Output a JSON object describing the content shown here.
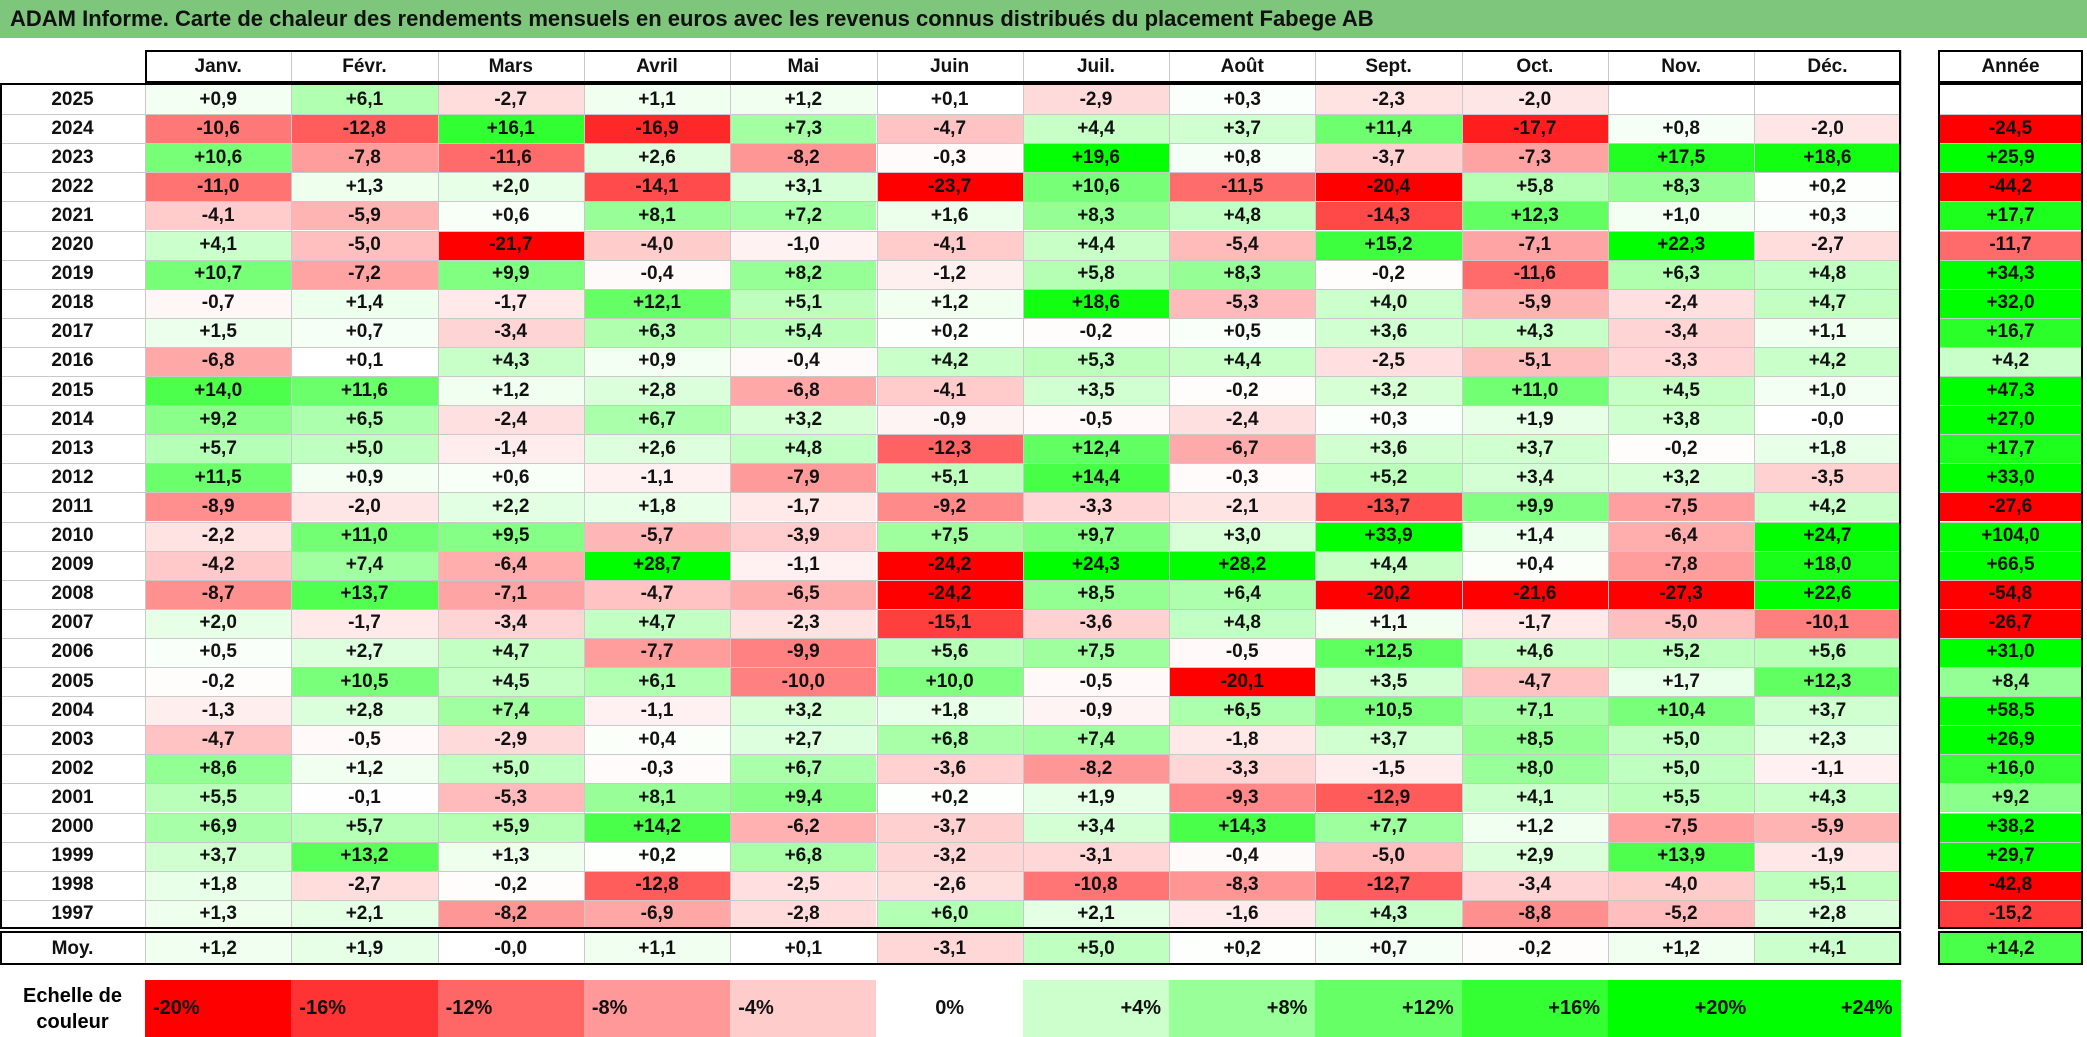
{
  "title": "ADAM Informe. Carte de chaleur des rendements mensuels en euros avec les revenus connus distribués du placement Fabege AB",
  "scale_label": "Echelle de couleur",
  "chart_data": {
    "type": "heatmap",
    "title": "ADAM Informe. Carte de chaleur des rendements mensuels en euros avec les revenus connus distribués du placement Fabege AB",
    "columns": [
      "Janv.",
      "Févr.",
      "Mars",
      "Avril",
      "Mai",
      "Juin",
      "Juil.",
      "Août",
      "Sept.",
      "Oct.",
      "Nov.",
      "Déc."
    ],
    "annual_header": "Année",
    "rows": [
      {
        "year": "2025",
        "values": [
          "+0,9",
          "+6,1",
          "-2,7",
          "+1,1",
          "+1,2",
          "+0,1",
          "-2,9",
          "+0,3",
          "-2,3",
          "-2,0",
          "",
          ""
        ],
        "annual": ""
      },
      {
        "year": "2024",
        "values": [
          "-10,6",
          "-12,8",
          "+16,1",
          "-16,9",
          "+7,3",
          "-4,7",
          "+4,4",
          "+3,7",
          "+11,4",
          "-17,7",
          "+0,8",
          "-2,0"
        ],
        "annual": "-24,5"
      },
      {
        "year": "2023",
        "values": [
          "+10,6",
          "-7,8",
          "-11,6",
          "+2,6",
          "-8,2",
          "-0,3",
          "+19,6",
          "+0,8",
          "-3,7",
          "-7,3",
          "+17,5",
          "+18,6"
        ],
        "annual": "+25,9"
      },
      {
        "year": "2022",
        "values": [
          "-11,0",
          "+1,3",
          "+2,0",
          "-14,1",
          "+3,1",
          "-23,7",
          "+10,6",
          "-11,5",
          "-20,4",
          "+5,8",
          "+8,3",
          "+0,2"
        ],
        "annual": "-44,2"
      },
      {
        "year": "2021",
        "values": [
          "-4,1",
          "-5,9",
          "+0,6",
          "+8,1",
          "+7,2",
          "+1,6",
          "+8,3",
          "+4,8",
          "-14,3",
          "+12,3",
          "+1,0",
          "+0,3"
        ],
        "annual": "+17,7"
      },
      {
        "year": "2020",
        "values": [
          "+4,1",
          "-5,0",
          "-21,7",
          "-4,0",
          "-1,0",
          "-4,1",
          "+4,4",
          "-5,4",
          "+15,2",
          "-7,1",
          "+22,3",
          "-2,7"
        ],
        "annual": "-11,7"
      },
      {
        "year": "2019",
        "values": [
          "+10,7",
          "-7,2",
          "+9,9",
          "-0,4",
          "+8,2",
          "-1,2",
          "+5,8",
          "+8,3",
          "-0,2",
          "-11,6",
          "+6,3",
          "+4,8"
        ],
        "annual": "+34,3"
      },
      {
        "year": "2018",
        "values": [
          "-0,7",
          "+1,4",
          "-1,7",
          "+12,1",
          "+5,1",
          "+1,2",
          "+18,6",
          "-5,3",
          "+4,0",
          "-5,9",
          "-2,4",
          "+4,7"
        ],
        "annual": "+32,0"
      },
      {
        "year": "2017",
        "values": [
          "+1,5",
          "+0,7",
          "-3,4",
          "+6,3",
          "+5,4",
          "+0,2",
          "-0,2",
          "+0,5",
          "+3,6",
          "+4,3",
          "-3,4",
          "+1,1"
        ],
        "annual": "+16,7"
      },
      {
        "year": "2016",
        "values": [
          "-6,8",
          "+0,1",
          "+4,3",
          "+0,9",
          "-0,4",
          "+4,2",
          "+5,3",
          "+4,4",
          "-2,5",
          "-5,1",
          "-3,3",
          "+4,2"
        ],
        "annual": "+4,2"
      },
      {
        "year": "2015",
        "values": [
          "+14,0",
          "+11,6",
          "+1,2",
          "+2,8",
          "-6,8",
          "-4,1",
          "+3,5",
          "-0,2",
          "+3,2",
          "+11,0",
          "+4,5",
          "+1,0"
        ],
        "annual": "+47,3"
      },
      {
        "year": "2014",
        "values": [
          "+9,2",
          "+6,5",
          "-2,4",
          "+6,7",
          "+3,2",
          "-0,9",
          "-0,5",
          "-2,4",
          "+0,3",
          "+1,9",
          "+3,8",
          "-0,0"
        ],
        "annual": "+27,0"
      },
      {
        "year": "2013",
        "values": [
          "+5,7",
          "+5,0",
          "-1,4",
          "+2,6",
          "+4,8",
          "-12,3",
          "+12,4",
          "-6,7",
          "+3,6",
          "+3,7",
          "-0,2",
          "+1,8"
        ],
        "annual": "+17,7"
      },
      {
        "year": "2012",
        "values": [
          "+11,5",
          "+0,9",
          "+0,6",
          "-1,1",
          "-7,9",
          "+5,1",
          "+14,4",
          "-0,3",
          "+5,2",
          "+3,4",
          "+3,2",
          "-3,5"
        ],
        "annual": "+33,0"
      },
      {
        "year": "2011",
        "values": [
          "-8,9",
          "-2,0",
          "+2,2",
          "+1,8",
          "-1,7",
          "-9,2",
          "-3,3",
          "-2,1",
          "-13,7",
          "+9,9",
          "-7,5",
          "+4,2"
        ],
        "annual": "-27,6"
      },
      {
        "year": "2010",
        "values": [
          "-2,2",
          "+11,0",
          "+9,5",
          "-5,7",
          "-3,9",
          "+7,5",
          "+9,7",
          "+3,0",
          "+33,9",
          "+1,4",
          "-6,4",
          "+24,7"
        ],
        "annual": "+104,0"
      },
      {
        "year": "2009",
        "values": [
          "-4,2",
          "+7,4",
          "-6,4",
          "+28,7",
          "-1,1",
          "-24,2",
          "+24,3",
          "+28,2",
          "+4,4",
          "+0,4",
          "-7,8",
          "+18,0"
        ],
        "annual": "+66,5"
      },
      {
        "year": "2008",
        "values": [
          "-8,7",
          "+13,7",
          "-7,1",
          "-4,7",
          "-6,5",
          "-24,2",
          "+8,5",
          "+6,4",
          "-20,2",
          "-21,6",
          "-27,3",
          "+22,6"
        ],
        "annual": "-54,8"
      },
      {
        "year": "2007",
        "values": [
          "+2,0",
          "-1,7",
          "-3,4",
          "+4,7",
          "-2,3",
          "-15,1",
          "-3,6",
          "+4,8",
          "+1,1",
          "-1,7",
          "-5,0",
          "-10,1"
        ],
        "annual": "-26,7"
      },
      {
        "year": "2006",
        "values": [
          "+0,5",
          "+2,7",
          "+4,7",
          "-7,7",
          "-9,9",
          "+5,6",
          "+7,5",
          "-0,5",
          "+12,5",
          "+4,6",
          "+5,2",
          "+5,6"
        ],
        "annual": "+31,0"
      },
      {
        "year": "2005",
        "values": [
          "-0,2",
          "+10,5",
          "+4,5",
          "+6,1",
          "-10,0",
          "+10,0",
          "-0,5",
          "-20,1",
          "+3,5",
          "-4,7",
          "+1,7",
          "+12,3"
        ],
        "annual": "+8,4"
      },
      {
        "year": "2004",
        "values": [
          "-1,3",
          "+2,8",
          "+7,4",
          "-1,1",
          "+3,2",
          "+1,8",
          "-0,9",
          "+6,5",
          "+10,5",
          "+7,1",
          "+10,4",
          "+3,7"
        ],
        "annual": "+58,5"
      },
      {
        "year": "2003",
        "values": [
          "-4,7",
          "-0,5",
          "-2,9",
          "+0,4",
          "+2,7",
          "+6,8",
          "+7,4",
          "-1,8",
          "+3,7",
          "+8,5",
          "+5,0",
          "+2,3"
        ],
        "annual": "+26,9"
      },
      {
        "year": "2002",
        "values": [
          "+8,6",
          "+1,2",
          "+5,0",
          "-0,3",
          "+6,7",
          "-3,6",
          "-8,2",
          "-3,3",
          "-1,5",
          "+8,0",
          "+5,0",
          "-1,1"
        ],
        "annual": "+16,0"
      },
      {
        "year": "2001",
        "values": [
          "+5,5",
          "-0,1",
          "-5,3",
          "+8,1",
          "+9,4",
          "+0,2",
          "+1,9",
          "-9,3",
          "-12,9",
          "+4,1",
          "+5,5",
          "+4,3"
        ],
        "annual": "+9,2"
      },
      {
        "year": "2000",
        "values": [
          "+6,9",
          "+5,7",
          "+5,9",
          "+14,2",
          "-6,2",
          "-3,7",
          "+3,4",
          "+14,3",
          "+7,7",
          "+1,2",
          "-7,5",
          "-5,9"
        ],
        "annual": "+38,2"
      },
      {
        "year": "1999",
        "values": [
          "+3,7",
          "+13,2",
          "+1,3",
          "+0,2",
          "+6,8",
          "-3,2",
          "-3,1",
          "-0,4",
          "-5,0",
          "+2,9",
          "+13,9",
          "-1,9"
        ],
        "annual": "+29,7"
      },
      {
        "year": "1998",
        "values": [
          "+1,8",
          "-2,7",
          "-0,2",
          "-12,8",
          "-2,5",
          "-2,6",
          "-10,8",
          "-8,3",
          "-12,7",
          "-3,4",
          "-4,0",
          "+5,1"
        ],
        "annual": "-42,8"
      },
      {
        "year": "1997",
        "values": [
          "+1,3",
          "+2,1",
          "-8,2",
          "-6,9",
          "-2,8",
          "+6,0",
          "+2,1",
          "-1,6",
          "+4,3",
          "-8,8",
          "-5,2",
          "+2,8"
        ],
        "annual": "-15,2"
      }
    ],
    "average": {
      "label": "Moy.",
      "values": [
        "+1,2",
        "+1,9",
        "-0,0",
        "+1,1",
        "+0,1",
        "-3,1",
        "+5,0",
        "+0,2",
        "+0,7",
        "-0,2",
        "+1,2",
        "+4,1"
      ],
      "annual": "+14,2"
    },
    "color_scale": [
      {
        "label": "-20%",
        "value": -20,
        "color": "#ff0000"
      },
      {
        "label": "-16%",
        "value": -16,
        "color": "#ff3333"
      },
      {
        "label": "-12%",
        "value": -12,
        "color": "#ff6666"
      },
      {
        "label": "-8%",
        "value": -8,
        "color": "#ff9999"
      },
      {
        "label": "-4%",
        "value": -4,
        "color": "#ffcccc"
      },
      {
        "label": "0%",
        "value": 0,
        "color": "#ffffff"
      },
      {
        "label": "+4%",
        "value": 4,
        "color": "#ccffcc"
      },
      {
        "label": "+8%",
        "value": 8,
        "color": "#99ff99"
      },
      {
        "label": "+12%",
        "value": 12,
        "color": "#66ff66"
      },
      {
        "label": "+16%",
        "value": 16,
        "color": "#33ff33"
      },
      {
        "label": "+20%",
        "value": 20,
        "color": "#00ff00"
      },
      {
        "label": "+24%",
        "value": 24,
        "color": "#00ff00"
      }
    ]
  }
}
